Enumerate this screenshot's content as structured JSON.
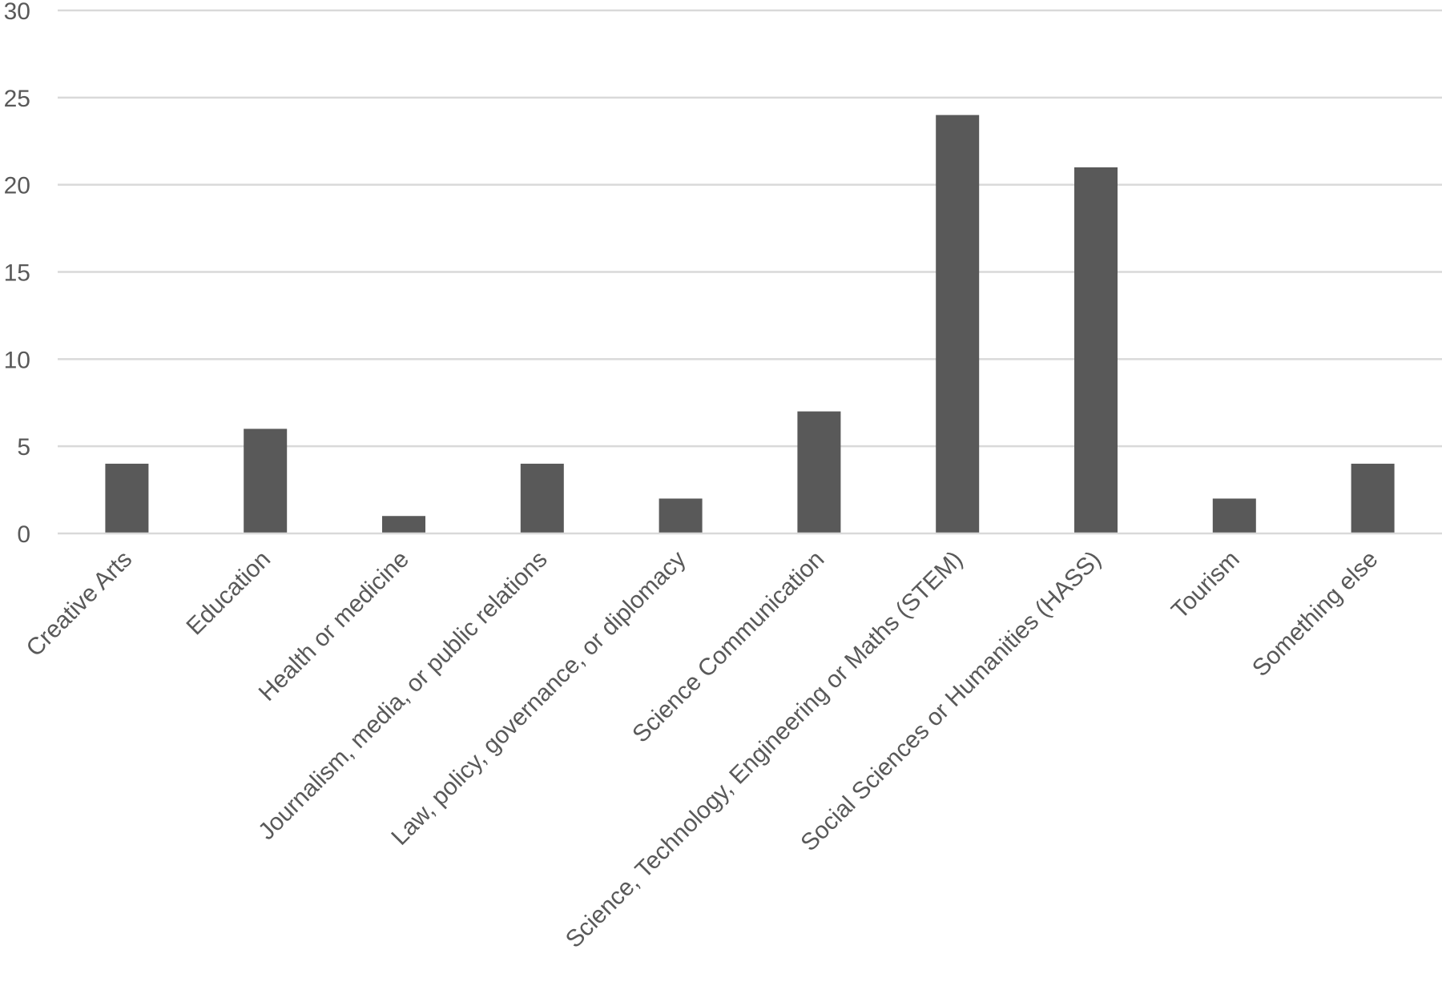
{
  "chart_data": {
    "type": "bar",
    "title": "",
    "xlabel": "",
    "ylabel": "",
    "ylim": [
      0,
      30
    ],
    "yticks": [
      0,
      5,
      10,
      15,
      20,
      25,
      30
    ],
    "grid": true,
    "legend": "none",
    "bar_color": "#595959",
    "grid_color": "#d9d9d9",
    "categories": [
      "Creative Arts",
      "Education",
      "Health or medicine",
      "Journalism, media, or public relations",
      "Law, policy, governance, or diplomacy",
      "Science Communication",
      "Science, Technology, Engineering or Maths (STEM)",
      "Social Sciences or Humanities (HASS)",
      "Tourism",
      "Something else"
    ],
    "values": [
      4,
      6,
      1,
      4,
      2,
      7,
      24,
      21,
      2,
      4
    ]
  }
}
